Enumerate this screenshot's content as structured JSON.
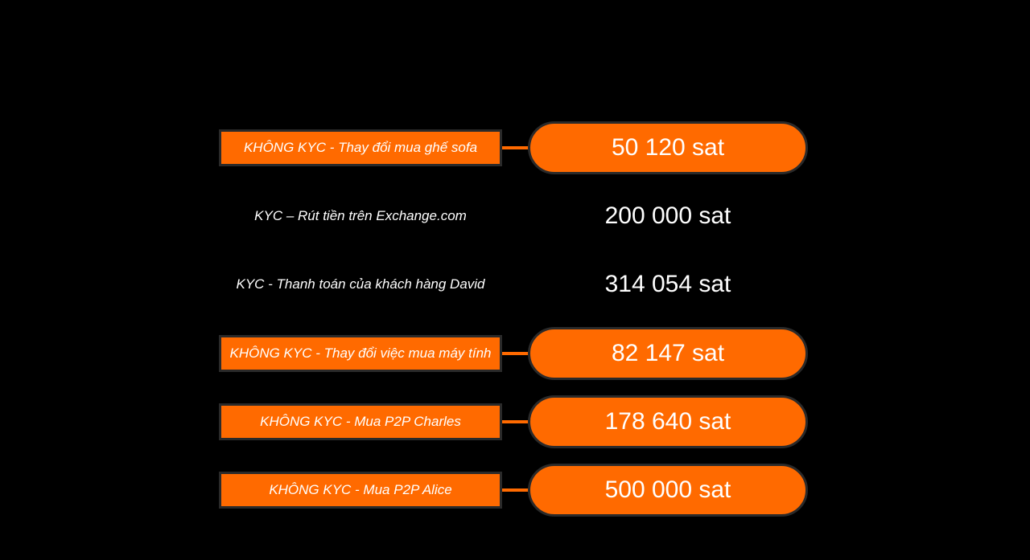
{
  "colors": {
    "background": "#000000",
    "accent": "#ff6a00",
    "text": "#ffffff"
  },
  "rows": [
    {
      "label": "KHÔNG KYC - Thay đổi mua ghế sofa",
      "amount": "50 120 sat",
      "highlighted": true
    },
    {
      "label": "KYC – Rút tiền trên Exchange.com",
      "amount": "200 000 sat",
      "highlighted": false
    },
    {
      "label": "KYC - Thanh toán của khách hàng David",
      "amount": "314 054 sat",
      "highlighted": false
    },
    {
      "label": "KHÔNG KYC - Thay đổi việc mua máy tính",
      "amount": "82 147 sat",
      "highlighted": true
    },
    {
      "label": "KHÔNG KYC - Mua P2P Charles",
      "amount": "178 640 sat",
      "highlighted": true
    },
    {
      "label": "KHÔNG KYC - Mua P2P Alice",
      "amount": "500 000 sat",
      "highlighted": true
    }
  ]
}
